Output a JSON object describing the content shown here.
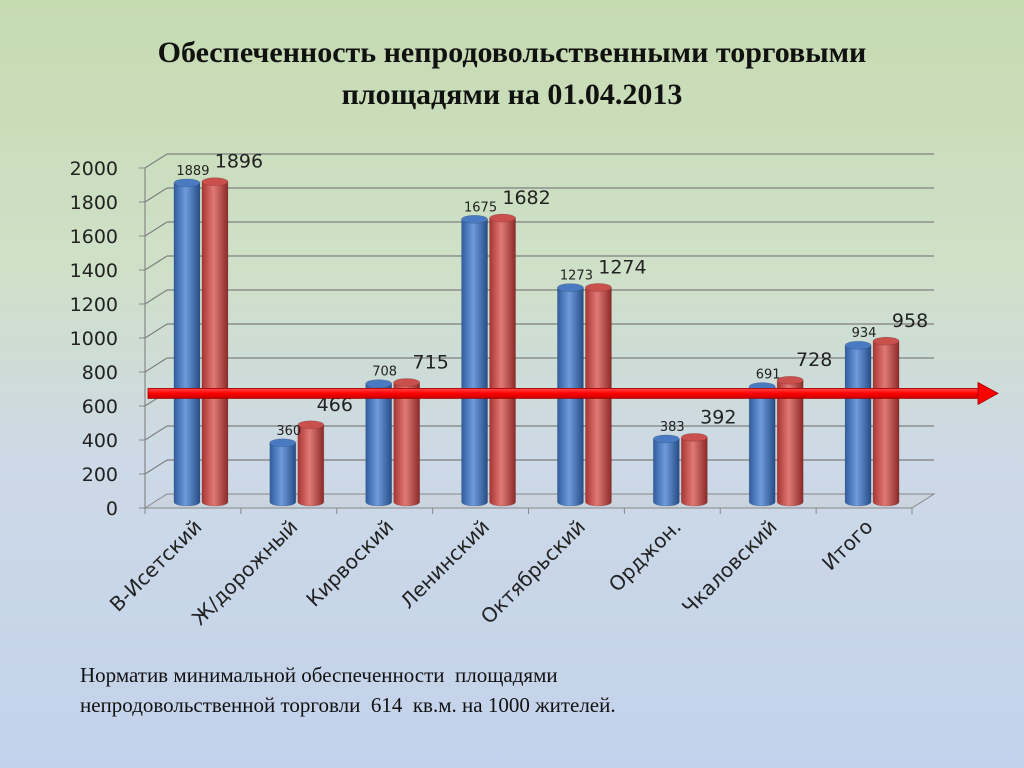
{
  "title_lines": [
    "Обеспеченность непродовольственными торговыми",
    "площадями на 01.04.2013"
  ],
  "note_lines": [
    "Норматив минимальной обеспеченности  площадями",
    "непродовольственной торговли  614  кв.м. на 1000 жителей."
  ],
  "colors": {
    "series1": "#4a7bc2",
    "series2": "#c9504d",
    "norm_line": "#ff0000"
  },
  "chart_data": {
    "type": "bar",
    "categories": [
      "В-Исетский",
      "Ж/дорожный",
      "Кирвоский",
      "Ленинский",
      "Октябрьский",
      "Орджон.",
      "Чкаловский",
      "Итого"
    ],
    "series": [
      {
        "values": [
          1889,
          360,
          708,
          1675,
          1273,
          383,
          691,
          934
        ],
        "labels": [
          "1889",
          "360",
          "708",
          "1675",
          "1273",
          "383",
          "691",
          "934"
        ]
      },
      {
        "values": [
          1896,
          466,
          715,
          1682,
          1274,
          392,
          728,
          958
        ],
        "labels": [
          "1896",
          "466",
          "715",
          "1682",
          "1274",
          "392",
          "728",
          "958"
        ]
      }
    ],
    "ylim": [
      0,
      2000
    ],
    "yticks": [
      "0",
      "200",
      "400",
      "600",
      "800",
      "1000",
      "1200",
      "1400",
      "1600",
      "1800",
      "2000"
    ],
    "norm_value": 614,
    "grid": true
  }
}
